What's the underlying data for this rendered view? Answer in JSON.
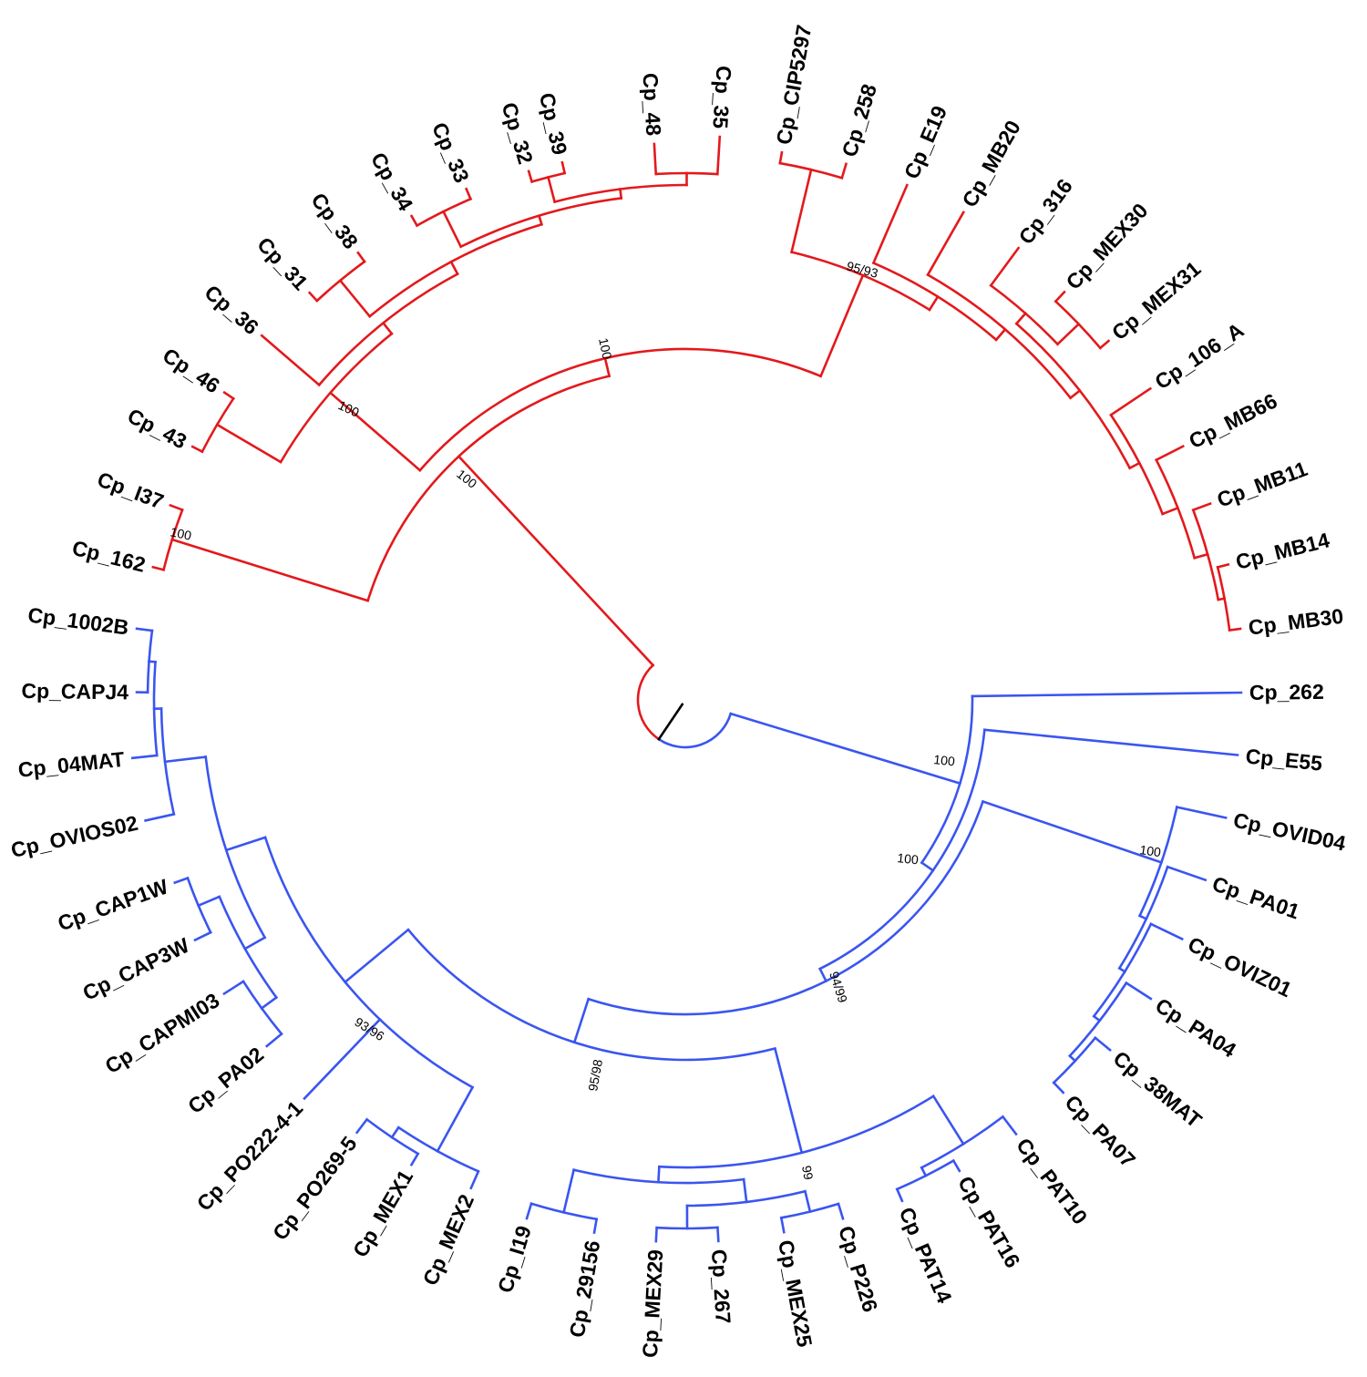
{
  "colors": {
    "clade_red": "#e3191c",
    "clade_blue": "#3a55f0",
    "root": "#000000"
  },
  "leaves": [
    "Cp_162",
    "Cp_I37",
    "Cp_43",
    "Cp_46",
    "Cp_36",
    "Cp_31",
    "Cp_38",
    "Cp_34",
    "Cp_33",
    "Cp_32",
    "Cp_39",
    "Cp_48",
    "Cp_35",
    "Cp_CIP5297",
    "Cp_258",
    "Cp_E19",
    "Cp_MB20",
    "Cp_316",
    "Cp_MEX30",
    "Cp_MEX31",
    "Cp_106_A",
    "Cp_MB66",
    "Cp_MB11",
    "Cp_MB14",
    "Cp_MB30",
    "Cp_262",
    "Cp_E55",
    "Cp_OVID04",
    "Cp_PA01",
    "Cp_OVIZ01",
    "Cp_PA04",
    "Cp_38MAT",
    "Cp_PA07",
    "Cp_PAT10",
    "Cp_PAT16",
    "Cp_PAT14",
    "Cp_P226",
    "Cp_MEX25",
    "Cp_267",
    "Cp_MEX29",
    "Cp_29156",
    "Cp_I19",
    "Cp_MEX2",
    "Cp_MEX1",
    "Cp_PO269-5",
    "Cp_PO222-4-1",
    "Cp_PA02",
    "Cp_CAPMI03",
    "Cp_CAP3W",
    "Cp_CAP1W",
    "Cp_OVIOS02",
    "Cp_04MAT",
    "Cp_CAPJ4",
    "Cp_1002B"
  ],
  "support": {
    "red_top": "100",
    "red_upper_left": "100",
    "red_main": "100",
    "red_i37_162": "100",
    "red_upper_right": "95/93",
    "blue_root": "100",
    "blue_inner": "100",
    "blue_ovid": "100",
    "blue_big": "94/99",
    "blue_left": "93/96",
    "blue_bottom": "95/98",
    "blue_pat": "99"
  }
}
